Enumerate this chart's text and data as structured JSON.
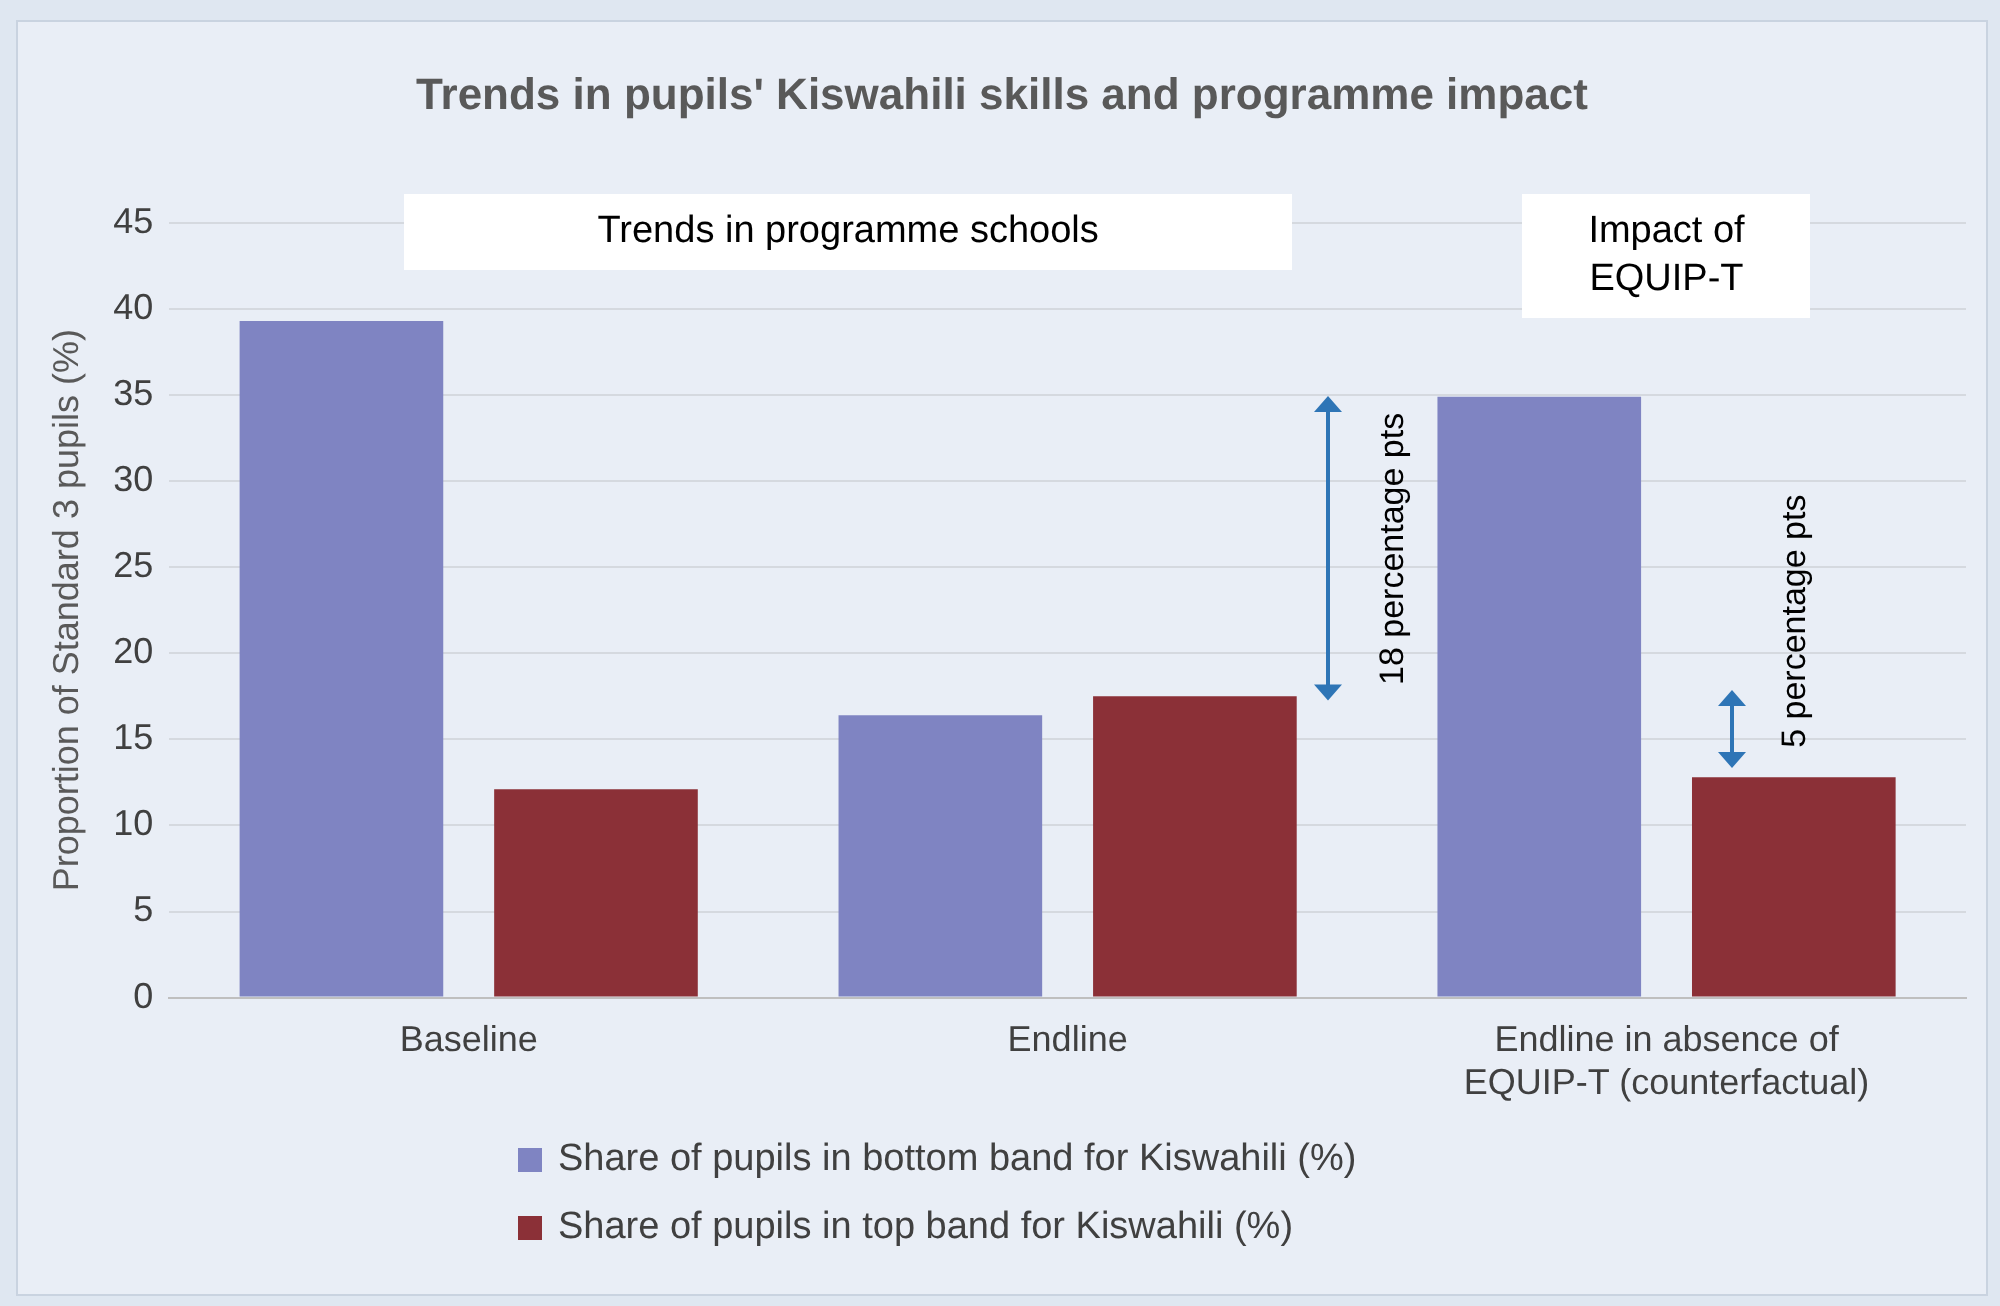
{
  "chart_data": {
    "type": "bar",
    "title": "Trends in pupils' Kiswahili skills and programme impact",
    "ylabel": "Proportion of Standard 3 pupils (%)",
    "categories": [
      "Baseline",
      "Endline",
      "Endline in absence of EQUIP-T (counterfactual)"
    ],
    "series": [
      {
        "name": "Share of pupils in bottom band for Kiswahili (%)",
        "color": "#7f84c2",
        "values": [
          39.3,
          16.4,
          34.9
        ]
      },
      {
        "name": "Share of pupils in top band for Kiswahili (%)",
        "color": "#8b3037",
        "values": [
          12.1,
          17.5,
          12.8
        ]
      }
    ],
    "ylim": [
      0,
      45
    ],
    "yticks": [
      0,
      5,
      10,
      15,
      20,
      25,
      30,
      35,
      40,
      45
    ],
    "grid": "y",
    "legend": "bottom",
    "annotations": [
      "Trends in programme schools",
      "Impact of EQUIP-T",
      "18 percentage pts",
      "5 percentage pts"
    ]
  }
}
